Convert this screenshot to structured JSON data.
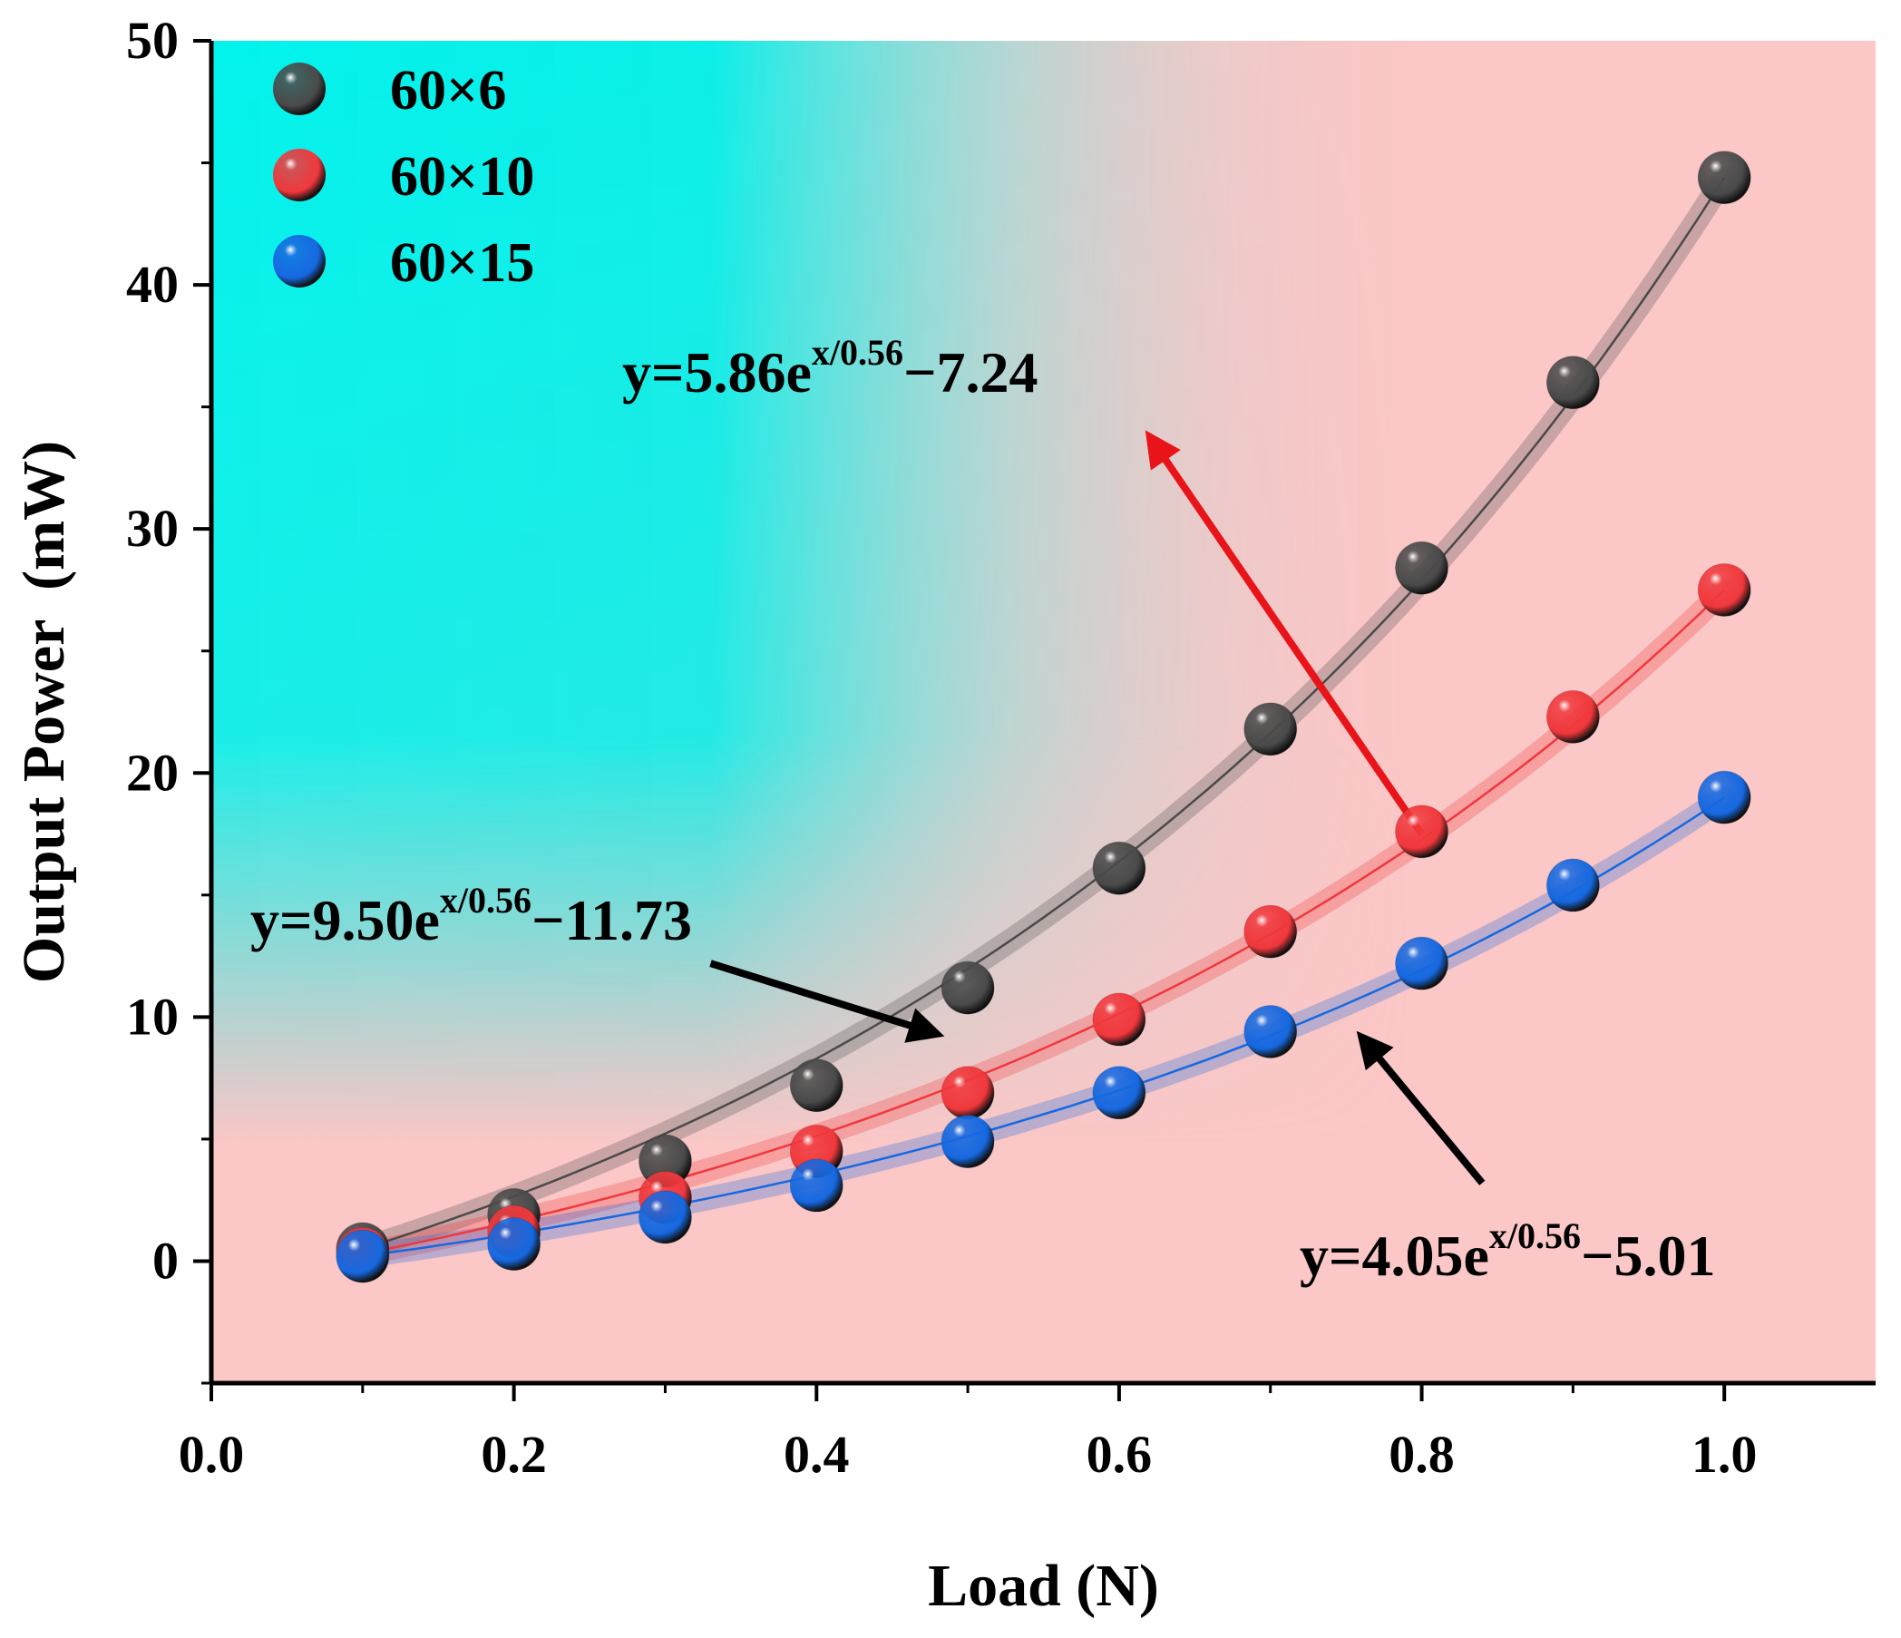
{
  "chart_data": {
    "type": "scatter",
    "title": "",
    "xlabel": "Load (N)",
    "ylabel": "Output Power  (mW)",
    "xlim": [
      0.0,
      1.1
    ],
    "ylim": [
      -5,
      50
    ],
    "xticks": [
      0.0,
      0.2,
      0.4,
      0.6,
      0.8,
      1.0
    ],
    "xtick_labels": [
      "0.0",
      "0.2",
      "0.4",
      "0.6",
      "0.8",
      "1.0"
    ],
    "yticks": [
      0,
      10,
      20,
      30,
      40,
      50
    ],
    "ytick_labels": [
      "0",
      "10",
      "20",
      "30",
      "40",
      "50"
    ],
    "grid": false,
    "legend_position": "top-left",
    "x": [
      0.1,
      0.2,
      0.3,
      0.4,
      0.5,
      0.6,
      0.7,
      0.8,
      0.9,
      1.0
    ],
    "series": [
      {
        "name": "60×6",
        "color": "#4a4a4a",
        "values": [
          0.5,
          1.9,
          4.1,
          7.2,
          11.2,
          16.1,
          21.8,
          28.4,
          36.0,
          44.4
        ],
        "fit": {
          "a": 5.86,
          "t": 0.56,
          "c": -7.24
        }
      },
      {
        "name": "60×10",
        "color": "#f0383c",
        "values": [
          0.3,
          1.2,
          2.6,
          4.5,
          6.9,
          9.9,
          13.5,
          17.6,
          22.3,
          27.5
        ],
        "fit": {
          "a": 9.5,
          "t": 0.56,
          "c": -11.73
        }
      },
      {
        "name": "60×15",
        "color": "#1668e0",
        "values": [
          0.2,
          0.7,
          1.8,
          3.1,
          4.9,
          6.9,
          9.4,
          12.2,
          15.4,
          19.0
        ],
        "fit": {
          "a": 4.05,
          "t": 0.56,
          "c": -5.01
        }
      }
    ],
    "annotations": [
      {
        "main": "y=5.86e",
        "sup": "x/0.56",
        "tail": "−7.24",
        "arrow_color": "#e8141a",
        "arrow_from": [
          0.8,
          17.5
        ],
        "arrow_to": [
          0.62,
          33.8
        ]
      },
      {
        "main": "y=9.50e",
        "sup": "x/0.56",
        "tail": "−11.73",
        "arrow_color": "#000000",
        "arrow_from": [
          0.33,
          12.2
        ],
        "arrow_to": [
          0.48,
          9.3
        ]
      },
      {
        "main": "y=4.05e",
        "sup": "x/0.56",
        "tail": "−5.01",
        "arrow_color": "#000000",
        "arrow_from": [
          0.84,
          3.2
        ],
        "arrow_to": [
          0.76,
          9.2
        ]
      }
    ],
    "background_colors": {
      "cyan": "#00f5ef",
      "pink": "#fbc7c7"
    }
  }
}
